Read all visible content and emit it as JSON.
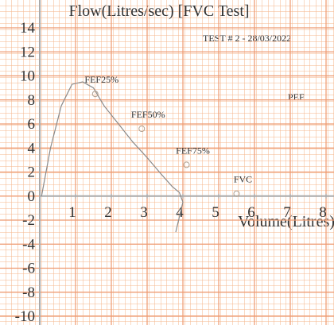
{
  "chart_data": {
    "type": "line",
    "title": "Flow(Litres/sec) [FVC Test]",
    "annotation": "TEST #   2 - 28/03/2022",
    "x_label": "Volume(Litres)",
    "xlim": [
      0,
      8.2
    ],
    "ylim": [
      -10,
      14
    ],
    "xticks": [
      1,
      2,
      3,
      4,
      5,
      6,
      7,
      8
    ],
    "yticks": [
      14,
      12,
      10,
      8,
      6,
      4,
      2,
      0,
      -2,
      -4,
      -6,
      -8,
      -10
    ],
    "grid": true,
    "series": [
      {
        "color": "#8a8a8a",
        "x": [
          0.05,
          0.3,
          0.6,
          0.9,
          1.2,
          1.5,
          1.8,
          2.2,
          2.6,
          3.0,
          3.4,
          3.7,
          3.9,
          4.0,
          3.8
        ],
        "values": [
          0,
          4,
          7.5,
          9.3,
          9.5,
          9.0,
          7.5,
          6,
          4.5,
          3.2,
          1.8,
          0.8,
          0.3,
          -0.5,
          -3
        ]
      }
    ],
    "points": {
      "color": "#b0a090",
      "labels": [
        "FEF25%",
        "FEF50%",
        "FEF75%",
        "FVC"
      ],
      "x": [
        1.55,
        2.85,
        4.1,
        5.5
      ],
      "values": [
        8.5,
        5.6,
        2.6,
        0.2
      ]
    },
    "extra_label": "PEF"
  }
}
